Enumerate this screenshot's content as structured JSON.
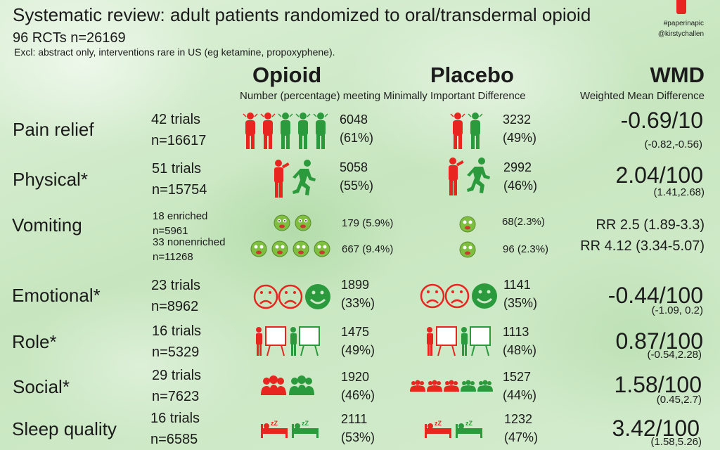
{
  "header": {
    "title": "Systematic review: adult patients randomized to oral/transdermal opioid",
    "rcts": "96 RCTs n=26169",
    "exclusions": "Excl: abstract only, interventions rare in US (eg ketamine, propoxyphene).",
    "credit_1": "#paperinapic",
    "credit_2": "@kirstychallen"
  },
  "columns": {
    "opioid": "Opioid",
    "placebo": "Placebo",
    "wmd": "WMD",
    "mid_note": "Number (percentage) meeting Minimally Important Difference",
    "wmd_note": "Weighted Mean Difference"
  },
  "colors": {
    "red": "#e8261f",
    "green": "#2a9a3c",
    "bg": "#cfe9c8",
    "text": "#1b1b1b"
  },
  "rows": [
    {
      "name": "Pain relief",
      "trials": "42 trials",
      "n": "n=16617",
      "icon": "pain-figure-icon",
      "opioid_value": "6048",
      "opioid_pct": "(61%)",
      "placebo_value": "3232",
      "placebo_pct": "(49%)",
      "effect": "-0.69/10",
      "ci": "(-0.82,-0.56)"
    },
    {
      "name": "Physical*",
      "trials": "51 trials",
      "n": "n=15754",
      "icon": "running-person-icon",
      "opioid_value": "5058",
      "opioid_pct": "(55%)",
      "placebo_value": "2992",
      "placebo_pct": "(46%)",
      "effect": "2.04/100",
      "ci": "(1.41,2.68)"
    },
    {
      "name": "Emotional*",
      "trials": "23 trials",
      "n": "n=8962",
      "icon": "face-icon",
      "opioid_value": "1899",
      "opioid_pct": "(33%)",
      "placebo_value": "1141",
      "placebo_pct": "(35%)",
      "effect": "-0.44/100",
      "ci": "(-1.09, 0.2)"
    },
    {
      "name": "Role*",
      "trials": "16 trials",
      "n": "n=5329",
      "icon": "presenter-icon",
      "opioid_value": "1475",
      "opioid_pct": "(49%)",
      "placebo_value": "1113",
      "placebo_pct": "(48%)",
      "effect": "0.87/100",
      "ci": "(-0.54,2.28)"
    },
    {
      "name": "Social*",
      "trials": "29 trials",
      "n": "n=7623",
      "icon": "group-icon",
      "opioid_value": "1920",
      "opioid_pct": "(46%)",
      "placebo_value": "1527",
      "placebo_pct": "(44%)",
      "effect": "1.58/100",
      "ci": "(0.45,2.7)"
    },
    {
      "name": "Sleep quality",
      "trials": "16 trials",
      "n": "n=6585",
      "icon": "sleeping-bed-icon",
      "opioid_value": "2111",
      "opioid_pct": "(53%)",
      "placebo_value": "1232",
      "placebo_pct": "(47%)",
      "effect": "3.42/100",
      "ci": "(1.58,5.26)"
    }
  ],
  "vomiting": {
    "name": "Vomiting",
    "icon": "vomiting-face-icon",
    "enriched": {
      "trials": "18 enriched",
      "n": "n=5961",
      "opioid": "179 (5.9%)",
      "placebo": "68(2.3%)",
      "rr": "RR 2.5 (1.89-3.3)"
    },
    "nonenriched": {
      "trials": "33 nonenriched",
      "n": "n=11268",
      "opioid": "667 (9.4%)",
      "placebo": "96 (2.3%)",
      "rr": "RR 4.12 (3.34-5.07)"
    }
  }
}
